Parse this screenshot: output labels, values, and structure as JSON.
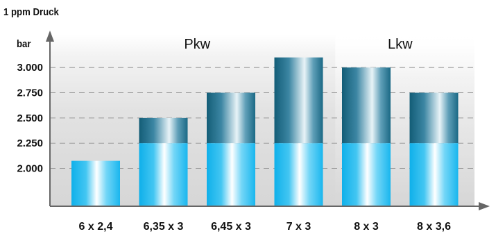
{
  "chart_data": {
    "type": "bar",
    "y_axis_title": "1 ppm Druck",
    "y_unit": "bar",
    "categories": [
      "6 x 2,4",
      "6,35 x 3",
      "6,45 x 3",
      "7 x 3",
      "8 x 3",
      "8 x 3,6"
    ],
    "values": [
      2075,
      2500,
      2750,
      3100,
      3000,
      2750
    ],
    "y_ticks": [
      2000,
      2250,
      2500,
      2750,
      3000
    ],
    "y_tick_labels": [
      "2.000",
      "2.250",
      "2.500",
      "2.750",
      "3.000"
    ],
    "ylim": [
      1625,
      3325
    ],
    "split_value": 2250,
    "groups": [
      {
        "label": "Pkw",
        "categories": [
          0,
          1,
          2,
          3
        ]
      },
      {
        "label": "Lkw",
        "categories": [
          4,
          5
        ]
      }
    ],
    "grid": "dashed horizontal",
    "colors": {
      "light_bar": "#1fb8ee",
      "dark_bar": "#1e6f8a",
      "background": "#dcdcdc",
      "axis": "#666666"
    }
  }
}
